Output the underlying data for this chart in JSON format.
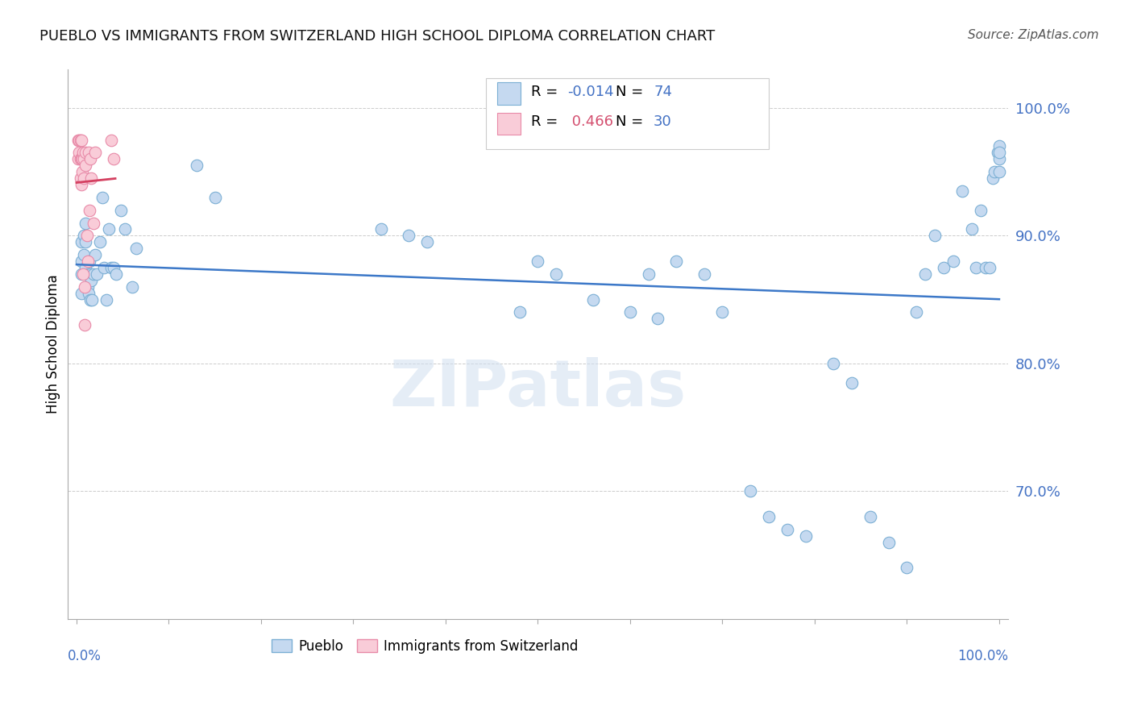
{
  "title": "PUEBLO VS IMMIGRANTS FROM SWITZERLAND HIGH SCHOOL DIPLOMA CORRELATION CHART",
  "source": "Source: ZipAtlas.com",
  "ylabel": "High School Diploma",
  "r_pueblo": -0.014,
  "n_pueblo": 74,
  "r_swiss": 0.466,
  "n_swiss": 30,
  "pueblo_color": "#c5d9f0",
  "pueblo_edge_color": "#7bafd4",
  "swiss_color": "#f9ccd8",
  "swiss_edge_color": "#e88aa8",
  "pueblo_line_color": "#3c78c8",
  "swiss_line_color": "#d44060",
  "background_color": "#ffffff",
  "grid_color": "#cccccc",
  "watermark": "ZIPatlas",
  "pueblo_x": [
    0.005,
    0.005,
    0.005,
    0.005,
    0.008,
    0.008,
    0.01,
    0.01,
    0.01,
    0.012,
    0.012,
    0.013,
    0.014,
    0.015,
    0.015,
    0.016,
    0.017,
    0.018,
    0.02,
    0.022,
    0.025,
    0.028,
    0.03,
    0.032,
    0.035,
    0.038,
    0.04,
    0.043,
    0.048,
    0.052,
    0.06,
    0.065,
    0.13,
    0.15,
    0.33,
    0.36,
    0.38,
    0.48,
    0.5,
    0.52,
    0.56,
    0.6,
    0.62,
    0.63,
    0.65,
    0.68,
    0.7,
    0.73,
    0.75,
    0.77,
    0.79,
    0.82,
    0.84,
    0.86,
    0.88,
    0.9,
    0.91,
    0.92,
    0.93,
    0.94,
    0.95,
    0.96,
    0.97,
    0.975,
    0.98,
    0.985,
    0.99,
    0.993,
    0.995,
    0.998,
    1.0,
    1.0,
    1.0,
    1.0
  ],
  "pueblo_y": [
    0.895,
    0.88,
    0.87,
    0.855,
    0.9,
    0.885,
    0.91,
    0.895,
    0.875,
    0.87,
    0.86,
    0.855,
    0.88,
    0.87,
    0.85,
    0.865,
    0.85,
    0.87,
    0.885,
    0.87,
    0.895,
    0.93,
    0.875,
    0.85,
    0.905,
    0.875,
    0.875,
    0.87,
    0.92,
    0.905,
    0.86,
    0.89,
    0.955,
    0.93,
    0.905,
    0.9,
    0.895,
    0.84,
    0.88,
    0.87,
    0.85,
    0.84,
    0.87,
    0.835,
    0.88,
    0.87,
    0.84,
    0.7,
    0.68,
    0.67,
    0.665,
    0.8,
    0.785,
    0.68,
    0.66,
    0.64,
    0.84,
    0.87,
    0.9,
    0.875,
    0.88,
    0.935,
    0.905,
    0.875,
    0.92,
    0.875,
    0.875,
    0.945,
    0.95,
    0.965,
    0.97,
    0.96,
    0.95,
    0.965
  ],
  "swiss_x": [
    0.002,
    0.002,
    0.003,
    0.003,
    0.004,
    0.004,
    0.004,
    0.005,
    0.005,
    0.005,
    0.006,
    0.006,
    0.007,
    0.007,
    0.008,
    0.008,
    0.009,
    0.009,
    0.01,
    0.01,
    0.011,
    0.012,
    0.013,
    0.014,
    0.015,
    0.016,
    0.018,
    0.02,
    0.038,
    0.04
  ],
  "swiss_y": [
    0.975,
    0.96,
    0.975,
    0.965,
    0.975,
    0.96,
    0.945,
    0.975,
    0.96,
    0.94,
    0.96,
    0.95,
    0.965,
    0.87,
    0.96,
    0.945,
    0.86,
    0.83,
    0.965,
    0.955,
    0.9,
    0.88,
    0.965,
    0.92,
    0.96,
    0.945,
    0.91,
    0.965,
    0.975,
    0.96
  ],
  "ylim": [
    0.6,
    1.03
  ],
  "xlim": [
    -0.01,
    1.01
  ],
  "yticks": [
    0.7,
    0.8,
    0.9,
    1.0
  ],
  "ytick_labels": [
    "70.0%",
    "80.0%",
    "90.0%",
    "100.0%"
  ],
  "title_fontsize": 13,
  "source_fontsize": 11,
  "tick_fontsize": 13
}
